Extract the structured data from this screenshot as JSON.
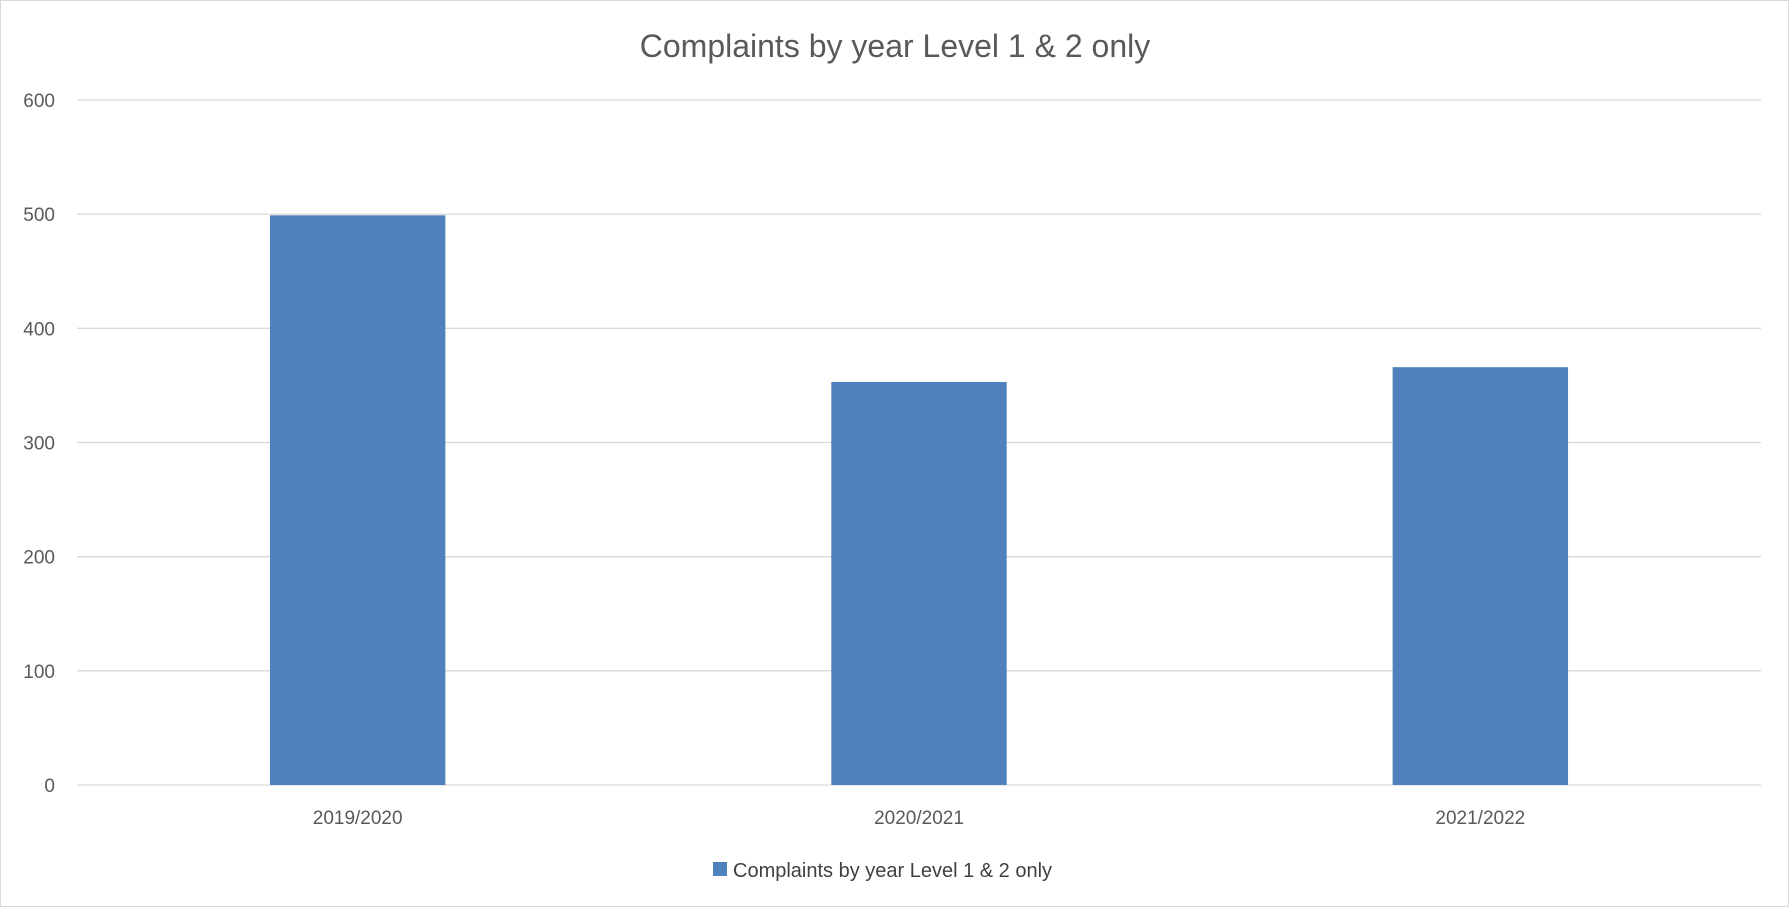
{
  "chart_data": {
    "type": "bar",
    "title": "Complaints by year Level 1 & 2 only",
    "xlabel": "",
    "ylabel": "",
    "categories": [
      "2019/2020",
      "2020/2021",
      "2021/2022"
    ],
    "series": [
      {
        "name": "Complaints by year Level 1 & 2 only",
        "values": [
          499,
          353,
          366
        ],
        "color": "#4f81bd"
      }
    ],
    "ylim": [
      0,
      600
    ],
    "yticks": [
      0,
      100,
      200,
      300,
      400,
      500,
      600
    ],
    "grid": true,
    "legend_position": "bottom"
  }
}
